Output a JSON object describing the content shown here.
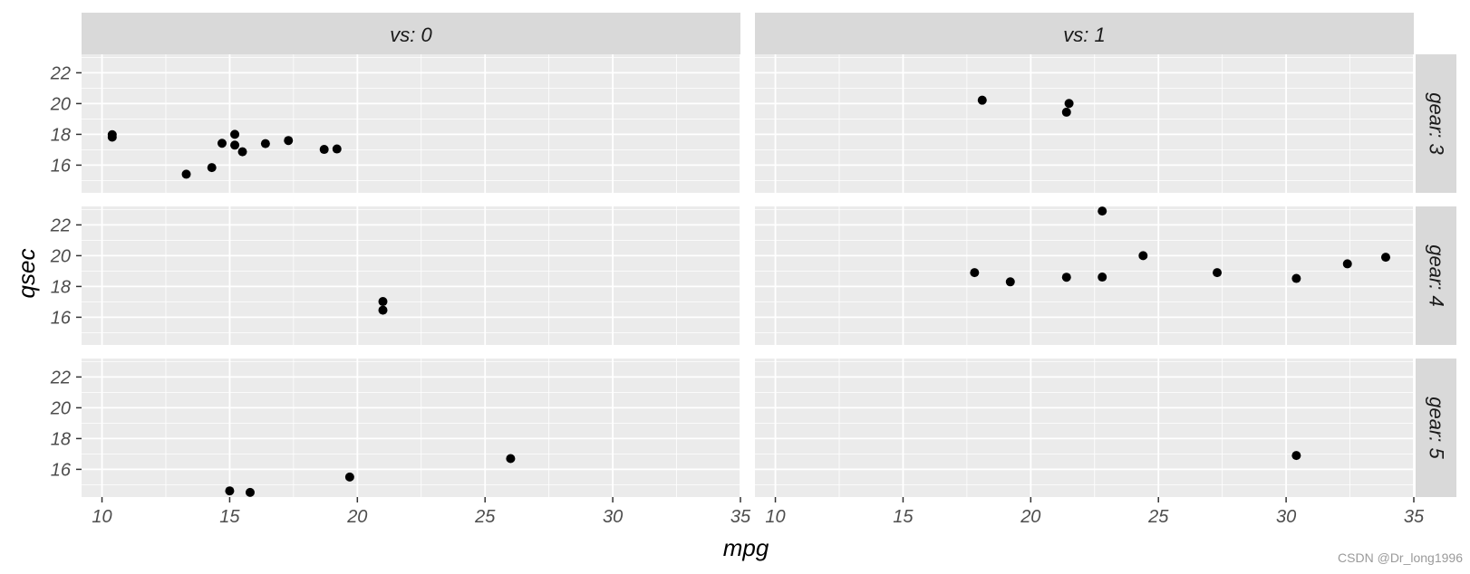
{
  "chart_data": {
    "type": "scatter",
    "facet": "grid",
    "xlabel": "mpg",
    "ylabel": "qsec",
    "xlim": [
      9.2,
      35.0
    ],
    "ylim": [
      14.2,
      23.2
    ],
    "x_ticks": [
      10,
      15,
      20,
      25,
      30,
      35
    ],
    "y_ticks": [
      16,
      18,
      20,
      22
    ],
    "col_strips": [
      "vs: 0",
      "vs: 1"
    ],
    "row_strips": [
      "gear: 3",
      "gear: 4",
      "gear: 5"
    ],
    "grid": true,
    "panels": [
      {
        "row": 0,
        "col": 0,
        "points": [
          [
            10.4,
            17.98
          ],
          [
            10.4,
            17.82
          ],
          [
            13.3,
            15.41
          ],
          [
            14.3,
            15.84
          ],
          [
            14.7,
            17.42
          ],
          [
            15.2,
            17.3
          ],
          [
            15.2,
            18.0
          ],
          [
            15.5,
            16.87
          ],
          [
            16.4,
            17.4
          ],
          [
            17.3,
            17.6
          ],
          [
            18.7,
            17.02
          ],
          [
            19.2,
            17.05
          ]
        ]
      },
      {
        "row": 0,
        "col": 1,
        "points": [
          [
            18.1,
            20.22
          ],
          [
            21.4,
            19.44
          ],
          [
            21.5,
            20.01
          ]
        ]
      },
      {
        "row": 1,
        "col": 0,
        "points": [
          [
            21.0,
            16.46
          ],
          [
            21.0,
            17.02
          ]
        ]
      },
      {
        "row": 1,
        "col": 1,
        "points": [
          [
            17.8,
            18.9
          ],
          [
            19.2,
            18.3
          ],
          [
            21.4,
            18.6
          ],
          [
            22.8,
            18.61
          ],
          [
            22.8,
            22.9
          ],
          [
            24.4,
            20.0
          ],
          [
            27.3,
            18.9
          ],
          [
            30.4,
            18.52
          ],
          [
            32.4,
            19.47
          ],
          [
            33.9,
            19.9
          ]
        ]
      },
      {
        "row": 2,
        "col": 0,
        "points": [
          [
            15.0,
            14.6
          ],
          [
            15.8,
            14.5
          ],
          [
            19.7,
            15.5
          ],
          [
            26.0,
            16.7
          ]
        ]
      },
      {
        "row": 2,
        "col": 1,
        "points": [
          [
            30.4,
            16.9
          ]
        ]
      }
    ]
  },
  "watermark": "CSDN @Dr_long1996"
}
